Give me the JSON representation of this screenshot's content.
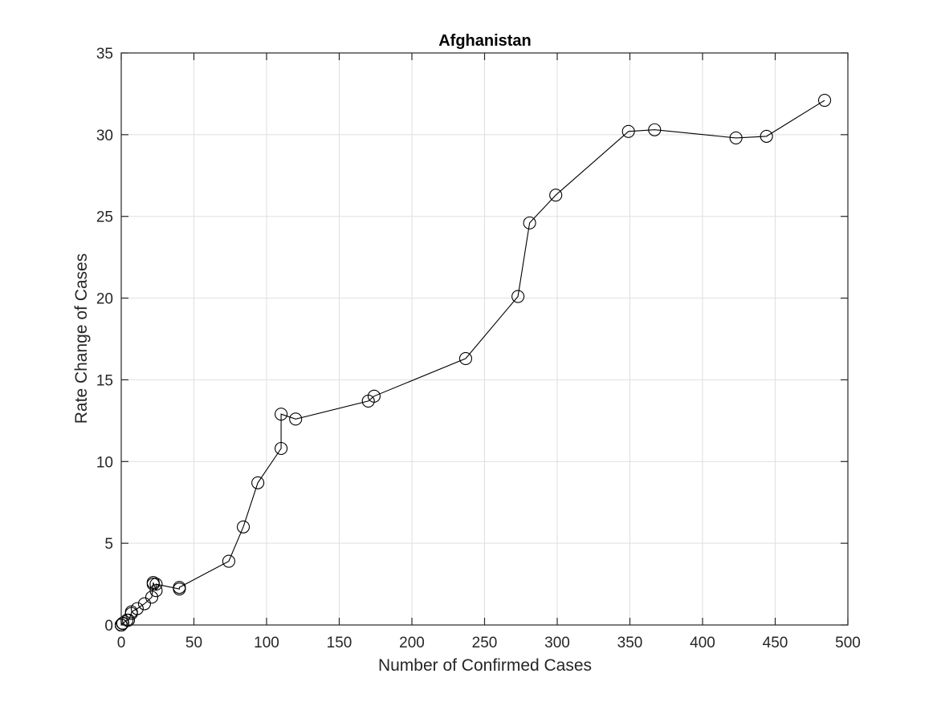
{
  "chart_data": {
    "type": "line",
    "title": "Afghanistan",
    "xlabel": "Number of Confirmed Cases",
    "ylabel": "Rate Change of Cases",
    "xlim": [
      0,
      500
    ],
    "ylim": [
      0,
      35
    ],
    "xticks": [
      0,
      50,
      100,
      150,
      200,
      250,
      300,
      350,
      400,
      450,
      500
    ],
    "yticks": [
      0,
      5,
      10,
      15,
      20,
      25,
      30,
      35
    ],
    "grid": true,
    "marker": "circle-open",
    "line_color": "#000000",
    "series": [
      {
        "points": [
          [
            0,
            0
          ],
          [
            0,
            0
          ],
          [
            0,
            0
          ],
          [
            0,
            0
          ],
          [
            1,
            0.1
          ],
          [
            1,
            0.1
          ],
          [
            1,
            0.1
          ],
          [
            1,
            0.1
          ],
          [
            1,
            0.1
          ],
          [
            4,
            0.3
          ],
          [
            5,
            0.3
          ],
          [
            7,
            0.7
          ],
          [
            7,
            0.8
          ],
          [
            11,
            1.0
          ],
          [
            16,
            1.3
          ],
          [
            21,
            1.7
          ],
          [
            22,
            2.5
          ],
          [
            22,
            2.6
          ],
          [
            24,
            2.1
          ],
          [
            24,
            2.5
          ],
          [
            40,
            2.2
          ],
          [
            40,
            2.3
          ],
          [
            74,
            3.9
          ],
          [
            84,
            6.0
          ],
          [
            94,
            8.7
          ],
          [
            110,
            10.8
          ],
          [
            110,
            12.9
          ],
          [
            120,
            12.6
          ],
          [
            170,
            13.7
          ],
          [
            174,
            14.0
          ],
          [
            237,
            16.3
          ],
          [
            273,
            20.1
          ],
          [
            281,
            24.6
          ],
          [
            299,
            26.3
          ],
          [
            349,
            30.2
          ],
          [
            367,
            30.3
          ],
          [
            423,
            29.8
          ],
          [
            444,
            29.9
          ],
          [
            484,
            32.1
          ]
        ]
      }
    ]
  }
}
